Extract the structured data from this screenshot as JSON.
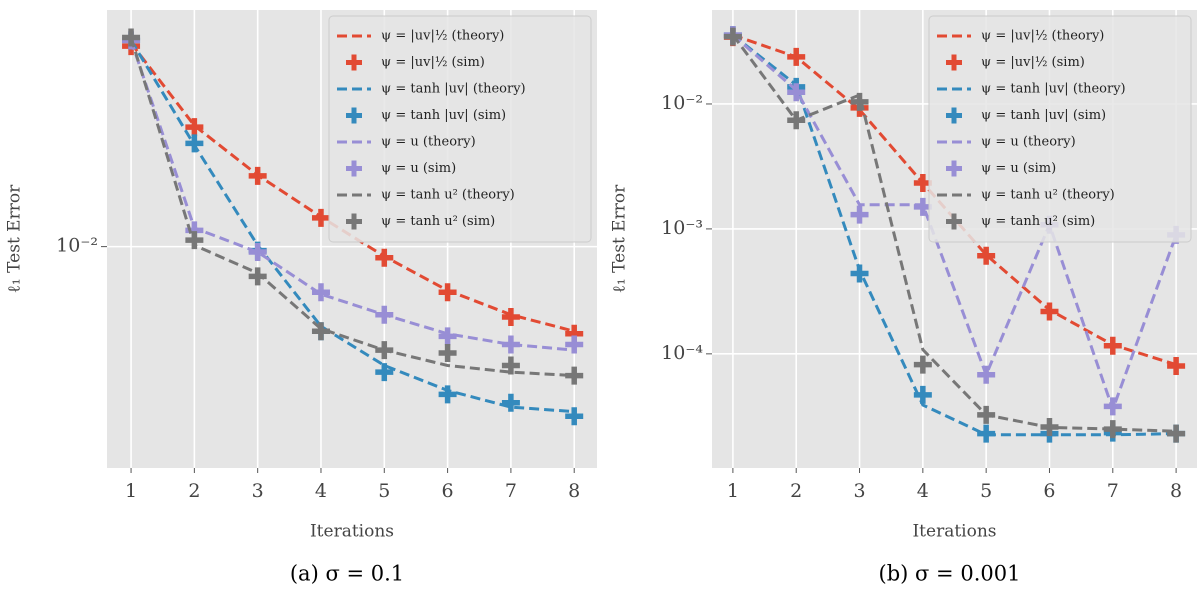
{
  "chart_data": [
    {
      "type": "line",
      "caption": "(a) σ = 0.1",
      "xlabel": "Iterations",
      "ylabel": "ℓ₁ Test Error",
      "log_y": true,
      "grid": true,
      "legend": "upper right",
      "x": [
        1,
        2,
        3,
        4,
        5,
        6,
        7,
        8
      ],
      "xlim": [
        0.62,
        8.36
      ],
      "xticks": [
        1,
        2,
        3,
        4,
        5,
        6,
        7,
        8
      ],
      "ylim": [
        0.0019,
        0.059
      ],
      "yticks": [
        {
          "value": 0.01,
          "label": "10⁻²"
        }
      ],
      "series": [
        {
          "name": "ψ = |uv|½ (theory)",
          "color": "#e24a33",
          "style": "dashed",
          "values": [
            0.046,
            0.0248,
            0.0171,
            0.0125,
            0.0093,
            0.0072,
            0.006,
            0.0053
          ]
        },
        {
          "name": "ψ = |uv|½ (sim)",
          "color": "#e24a33",
          "style": "marker",
          "values": [
            0.045,
            0.0245,
            0.017,
            0.0124,
            0.0092,
            0.0071,
            0.0059,
            0.0052
          ]
        },
        {
          "name": "ψ = tanh |uv| (theory)",
          "color": "#348abd",
          "style": "dashed",
          "values": [
            0.047,
            0.0214,
            0.0101,
            0.0055,
            0.0041,
            0.0034,
            0.003,
            0.0029
          ]
        },
        {
          "name": "ψ = tanh |uv| (sim)",
          "color": "#348abd",
          "style": "marker",
          "values": [
            0.047,
            0.0217,
            0.0097,
            0.0053,
            0.0039,
            0.0033,
            0.0031,
            0.0028
          ]
        },
        {
          "name": "ψ = u (theory)",
          "color": "#988ed5",
          "style": "dashed",
          "values": [
            0.047,
            0.0115,
            0.0096,
            0.007,
            0.006,
            0.0052,
            0.0048,
            0.0046
          ]
        },
        {
          "name": "ψ = u (sim)",
          "color": "#988ed5",
          "style": "marker",
          "values": [
            0.047,
            0.0113,
            0.0096,
            0.0071,
            0.006,
            0.0051,
            0.0048,
            0.0048
          ]
        },
        {
          "name": "ψ = tanh u² (theory)",
          "color": "#777777",
          "style": "dashed",
          "values": [
            0.048,
            0.0101,
            0.0082,
            0.0054,
            0.0046,
            0.0041,
            0.0039,
            0.0038
          ]
        },
        {
          "name": "ψ = tanh u² (sim)",
          "color": "#777777",
          "style": "marker",
          "values": [
            0.048,
            0.0105,
            0.008,
            0.0053,
            0.0046,
            0.0045,
            0.0041,
            0.0038
          ]
        }
      ]
    },
    {
      "type": "line",
      "caption": "(b) σ = 0.001",
      "xlabel": "Iterations",
      "ylabel": "ℓ₁ Test Error",
      "log_y": true,
      "grid": true,
      "legend": "upper right",
      "x": [
        1,
        2,
        3,
        4,
        5,
        6,
        7,
        8
      ],
      "xlim": [
        0.67,
        8.33
      ],
      "xticks": [
        1,
        2,
        3,
        4,
        5,
        6,
        7,
        8
      ],
      "ylim": [
        1.22e-05,
        0.0565
      ],
      "yticks": [
        {
          "value": 0.01,
          "label": "10⁻²"
        },
        {
          "value": 0.001,
          "label": "10⁻³"
        },
        {
          "value": 0.0001,
          "label": "10⁻⁴"
        }
      ],
      "series": [
        {
          "name": "ψ = |uv|½ (theory)",
          "color": "#e24a33",
          "style": "dashed",
          "values": [
            0.0356,
            0.0238,
            0.009,
            0.00233,
            0.00062,
            0.000225,
            0.000118,
            8.2e-05
          ]
        },
        {
          "name": "ψ = |uv|½ (sim)",
          "color": "#e24a33",
          "style": "marker",
          "values": [
            0.0343,
            0.0238,
            0.0093,
            0.00233,
            0.00061,
            0.000218,
            0.000116,
            8e-05
          ]
        },
        {
          "name": "ψ = tanh |uv| (theory)",
          "color": "#348abd",
          "style": "dashed",
          "values": [
            0.0356,
            0.0142,
            0.00047,
            3.9e-05,
            2.25e-05,
            2.25e-05,
            2.25e-05,
            2.3e-05
          ]
        },
        {
          "name": "ψ = tanh |uv| (sim)",
          "color": "#348abd",
          "style": "marker",
          "values": [
            0.0356,
            0.0137,
            0.00044,
            4.7e-05,
            2.3e-05,
            2.3e-05,
            2.34e-05,
            2.3e-05
          ]
        },
        {
          "name": "ψ = u (theory)",
          "color": "#988ed5",
          "style": "dashed",
          "values": [
            0.0356,
            0.0129,
            0.00156,
            0.00156,
            6.8e-05,
            0.00108,
            3.6e-05,
            0.000895
          ]
        },
        {
          "name": "ψ = u (sim)",
          "color": "#988ed5",
          "style": "marker",
          "values": [
            0.0356,
            0.0124,
            0.0013,
            0.0015,
            6.8e-05,
            0.00108,
            3.8e-05,
            0.000895
          ]
        },
        {
          "name": "ψ = tanh u² (theory)",
          "color": "#777777",
          "style": "dashed",
          "values": [
            0.0356,
            0.0074,
            0.0118,
            0.000108,
            3.25e-05,
            2.58e-05,
            2.5e-05,
            2.4e-05
          ]
        },
        {
          "name": "ψ = tanh u² (sim)",
          "color": "#777777",
          "style": "marker",
          "values": [
            0.0346,
            0.0074,
            0.0104,
            8.2e-05,
            3.25e-05,
            2.6e-05,
            2.5e-05,
            2.3e-05
          ]
        }
      ]
    }
  ]
}
